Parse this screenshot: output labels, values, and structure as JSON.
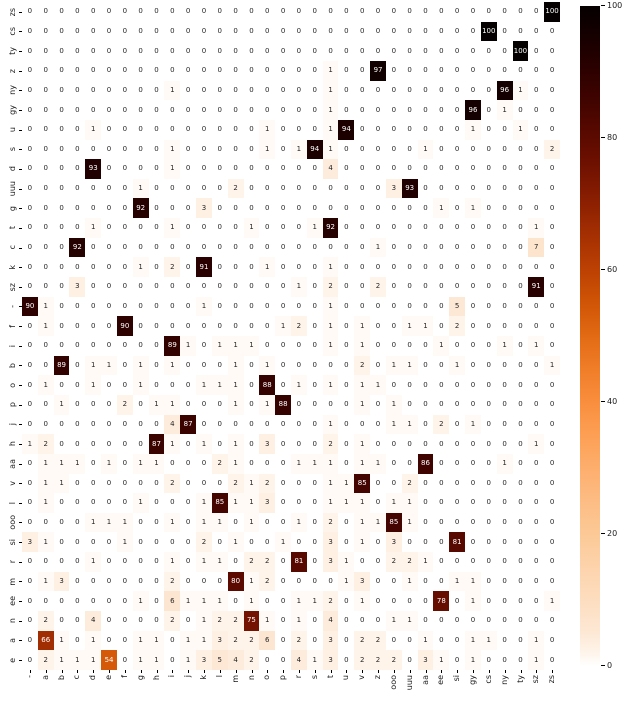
{
  "chart_data": {
    "type": "heatmap",
    "title": "",
    "xlabel": "",
    "ylabel": "",
    "col_labels": [
      "-",
      "a",
      "b",
      "c",
      "d",
      "e",
      "f",
      "g",
      "h",
      "i",
      "j",
      "k",
      "l",
      "m",
      "n",
      "o",
      "p",
      "r",
      "s",
      "t",
      "u",
      "v",
      "z",
      "ooo",
      "uuu",
      "aa",
      "ee",
      "si",
      "gy",
      "cs",
      "ny",
      "ty",
      "sz",
      "zs"
    ],
    "row_labels": [
      "zs",
      "cs",
      "ty",
      "z",
      "ny",
      "gy",
      "u",
      "s",
      "d",
      "uuu",
      "g",
      "t",
      "c",
      "k",
      "sz",
      "-",
      "f",
      "i",
      "b",
      "o",
      "p",
      "j",
      "h",
      "aa",
      "v",
      "l",
      "ooo",
      "si",
      "r",
      "m",
      "ee",
      "n",
      "a",
      "e"
    ],
    "matrix": [
      [
        0,
        0,
        0,
        0,
        0,
        0,
        0,
        0,
        0,
        0,
        0,
        0,
        0,
        0,
        0,
        0,
        0,
        0,
        0,
        0,
        0,
        0,
        0,
        0,
        0,
        0,
        0,
        0,
        0,
        0,
        0,
        0,
        0,
        100
      ],
      [
        0,
        0,
        0,
        0,
        0,
        0,
        0,
        0,
        0,
        0,
        0,
        0,
        0,
        0,
        0,
        0,
        0,
        0,
        0,
        0,
        0,
        0,
        0,
        0,
        0,
        0,
        0,
        0,
        0,
        100,
        0,
        0,
        0,
        0
      ],
      [
        0,
        0,
        0,
        0,
        0,
        0,
        0,
        0,
        0,
        0,
        0,
        0,
        0,
        0,
        0,
        0,
        0,
        0,
        0,
        0,
        0,
        0,
        0,
        0,
        0,
        0,
        0,
        0,
        0,
        0,
        0,
        100,
        0,
        0
      ],
      [
        0,
        0,
        0,
        0,
        0,
        0,
        0,
        0,
        0,
        0,
        0,
        0,
        0,
        0,
        0,
        0,
        0,
        0,
        0,
        1,
        0,
        0,
        97,
        0,
        0,
        0,
        0,
        0,
        0,
        0,
        0,
        0,
        0,
        0
      ],
      [
        0,
        0,
        0,
        0,
        0,
        0,
        0,
        0,
        0,
        1,
        0,
        0,
        0,
        0,
        0,
        0,
        0,
        0,
        0,
        1,
        0,
        0,
        0,
        0,
        0,
        0,
        0,
        0,
        0,
        0,
        96,
        1,
        0,
        0
      ],
      [
        0,
        0,
        0,
        0,
        0,
        0,
        0,
        0,
        0,
        0,
        0,
        0,
        0,
        0,
        0,
        0,
        0,
        0,
        0,
        1,
        0,
        0,
        0,
        0,
        0,
        0,
        0,
        0,
        96,
        0,
        1,
        0,
        0,
        0
      ],
      [
        0,
        0,
        0,
        0,
        1,
        0,
        0,
        0,
        0,
        0,
        0,
        0,
        0,
        0,
        0,
        1,
        0,
        0,
        0,
        1,
        94,
        0,
        0,
        0,
        0,
        0,
        0,
        0,
        1,
        0,
        0,
        1,
        0,
        0
      ],
      [
        0,
        0,
        0,
        0,
        0,
        0,
        0,
        0,
        0,
        1,
        0,
        0,
        0,
        0,
        0,
        1,
        0,
        1,
        94,
        1,
        0,
        0,
        0,
        0,
        0,
        1,
        0,
        0,
        0,
        0,
        0,
        0,
        0,
        2
      ],
      [
        0,
        0,
        0,
        0,
        93,
        0,
        0,
        0,
        0,
        1,
        0,
        0,
        0,
        0,
        0,
        0,
        0,
        0,
        0,
        4,
        0,
        0,
        0,
        0,
        0,
        0,
        0,
        0,
        0,
        0,
        0,
        0,
        0,
        0
      ],
      [
        0,
        0,
        0,
        0,
        0,
        0,
        0,
        1,
        0,
        0,
        0,
        0,
        0,
        2,
        0,
        0,
        0,
        0,
        0,
        0,
        0,
        0,
        0,
        3,
        93,
        0,
        0,
        0,
        0,
        0,
        0,
        0,
        0,
        0
      ],
      [
        0,
        0,
        0,
        0,
        0,
        0,
        0,
        92,
        0,
        0,
        0,
        3,
        0,
        0,
        0,
        0,
        0,
        0,
        0,
        0,
        0,
        0,
        0,
        0,
        0,
        0,
        1,
        0,
        1,
        0,
        0,
        0,
        0,
        0
      ],
      [
        0,
        0,
        0,
        0,
        1,
        0,
        0,
        0,
        0,
        1,
        0,
        0,
        0,
        0,
        1,
        0,
        0,
        0,
        1,
        92,
        0,
        0,
        0,
        0,
        0,
        0,
        0,
        0,
        0,
        0,
        0,
        0,
        1,
        0
      ],
      [
        0,
        0,
        0,
        92,
        0,
        0,
        0,
        0,
        0,
        0,
        0,
        0,
        0,
        0,
        0,
        0,
        0,
        0,
        0,
        0,
        0,
        0,
        1,
        0,
        0,
        0,
        0,
        0,
        0,
        0,
        0,
        0,
        7,
        0
      ],
      [
        0,
        0,
        0,
        0,
        0,
        0,
        0,
        1,
        0,
        2,
        0,
        91,
        0,
        0,
        0,
        1,
        0,
        0,
        0,
        1,
        0,
        0,
        0,
        0,
        0,
        0,
        0,
        0,
        0,
        0,
        0,
        0,
        0,
        0
      ],
      [
        0,
        0,
        0,
        3,
        0,
        0,
        0,
        0,
        0,
        0,
        0,
        0,
        0,
        0,
        0,
        0,
        0,
        1,
        0,
        2,
        0,
        0,
        2,
        0,
        0,
        0,
        0,
        0,
        0,
        0,
        0,
        0,
        91,
        0
      ],
      [
        90,
        1,
        0,
        0,
        0,
        0,
        0,
        0,
        0,
        0,
        0,
        1,
        0,
        0,
        0,
        0,
        0,
        0,
        0,
        1,
        0,
        0,
        0,
        0,
        0,
        0,
        0,
        5,
        0,
        0,
        0,
        0,
        0,
        0
      ],
      [
        0,
        1,
        0,
        0,
        0,
        0,
        90,
        0,
        0,
        0,
        0,
        0,
        0,
        0,
        0,
        0,
        1,
        2,
        0,
        1,
        0,
        1,
        0,
        0,
        1,
        1,
        0,
        2,
        0,
        0,
        0,
        0,
        0,
        0
      ],
      [
        0,
        0,
        0,
        0,
        0,
        0,
        0,
        0,
        0,
        89,
        1,
        0,
        1,
        1,
        1,
        0,
        0,
        0,
        0,
        1,
        0,
        1,
        0,
        0,
        0,
        0,
        1,
        0,
        0,
        0,
        1,
        0,
        1,
        0
      ],
      [
        0,
        0,
        89,
        0,
        1,
        1,
        0,
        1,
        0,
        1,
        0,
        0,
        0,
        1,
        0,
        1,
        0,
        0,
        0,
        0,
        0,
        2,
        0,
        1,
        1,
        0,
        0,
        1,
        0,
        0,
        0,
        0,
        0,
        1
      ],
      [
        0,
        1,
        0,
        0,
        1,
        0,
        0,
        1,
        0,
        0,
        0,
        1,
        1,
        1,
        0,
        88,
        0,
        1,
        0,
        1,
        0,
        1,
        1,
        0,
        0,
        0,
        0,
        0,
        0,
        0,
        0,
        0,
        0,
        0
      ],
      [
        0,
        0,
        1,
        0,
        0,
        0,
        2,
        0,
        1,
        1,
        0,
        0,
        0,
        1,
        0,
        1,
        88,
        0,
        0,
        0,
        0,
        1,
        0,
        1,
        0,
        0,
        0,
        0,
        0,
        0,
        0,
        0,
        0,
        0
      ],
      [
        0,
        0,
        0,
        0,
        0,
        0,
        0,
        0,
        0,
        4,
        87,
        0,
        0,
        0,
        0,
        0,
        0,
        0,
        0,
        1,
        0,
        0,
        0,
        1,
        1,
        0,
        2,
        0,
        1,
        0,
        0,
        0,
        0,
        0
      ],
      [
        1,
        2,
        0,
        0,
        0,
        0,
        0,
        0,
        87,
        1,
        0,
        1,
        0,
        1,
        0,
        3,
        0,
        0,
        0,
        2,
        0,
        1,
        0,
        0,
        0,
        0,
        0,
        0,
        0,
        0,
        0,
        0,
        1,
        0
      ],
      [
        0,
        1,
        1,
        1,
        0,
        1,
        0,
        1,
        1,
        0,
        0,
        0,
        2,
        1,
        0,
        0,
        0,
        1,
        1,
        1,
        0,
        1,
        1,
        0,
        0,
        86,
        0,
        0,
        0,
        0,
        1,
        0,
        0,
        0
      ],
      [
        0,
        1,
        1,
        0,
        0,
        0,
        0,
        0,
        0,
        2,
        0,
        0,
        0,
        2,
        1,
        2,
        0,
        0,
        0,
        1,
        1,
        85,
        0,
        0,
        2,
        0,
        0,
        0,
        0,
        0,
        0,
        0,
        0,
        0
      ],
      [
        0,
        1,
        0,
        0,
        0,
        0,
        0,
        1,
        0,
        0,
        0,
        1,
        85,
        1,
        1,
        3,
        0,
        0,
        0,
        1,
        1,
        1,
        0,
        1,
        1,
        0,
        0,
        0,
        0,
        0,
        0,
        0,
        0,
        0
      ],
      [
        0,
        0,
        0,
        0,
        1,
        1,
        1,
        0,
        0,
        1,
        0,
        1,
        1,
        0,
        1,
        0,
        0,
        1,
        0,
        2,
        0,
        1,
        1,
        85,
        1,
        0,
        0,
        0,
        0,
        0,
        0,
        0,
        0,
        0
      ],
      [
        3,
        1,
        0,
        0,
        0,
        0,
        1,
        0,
        0,
        0,
        0,
        2,
        0,
        1,
        0,
        0,
        1,
        0,
        0,
        3,
        0,
        1,
        0,
        3,
        0,
        0,
        0,
        81,
        0,
        0,
        0,
        0,
        0,
        0
      ],
      [
        0,
        0,
        0,
        0,
        1,
        0,
        0,
        0,
        0,
        1,
        0,
        1,
        1,
        0,
        2,
        2,
        0,
        81,
        0,
        3,
        1,
        0,
        0,
        2,
        2,
        1,
        0,
        0,
        0,
        0,
        0,
        0,
        0,
        0
      ],
      [
        0,
        1,
        3,
        0,
        0,
        0,
        0,
        0,
        0,
        2,
        0,
        0,
        0,
        80,
        1,
        2,
        0,
        0,
        0,
        0,
        1,
        3,
        0,
        0,
        1,
        0,
        0,
        1,
        1,
        0,
        0,
        0,
        0,
        0
      ],
      [
        0,
        0,
        0,
        0,
        0,
        0,
        0,
        1,
        0,
        6,
        1,
        1,
        1,
        0,
        1,
        0,
        0,
        1,
        1,
        2,
        0,
        1,
        0,
        0,
        0,
        0,
        78,
        0,
        1,
        0,
        0,
        0,
        0,
        1
      ],
      [
        0,
        2,
        0,
        0,
        4,
        0,
        0,
        0,
        0,
        2,
        0,
        1,
        2,
        2,
        75,
        1,
        0,
        1,
        0,
        4,
        0,
        0,
        0,
        1,
        1,
        0,
        0,
        0,
        0,
        0,
        0,
        0,
        0,
        0
      ],
      [
        0,
        66,
        1,
        0,
        1,
        0,
        0,
        1,
        1,
        0,
        1,
        1,
        3,
        2,
        2,
        6,
        0,
        2,
        0,
        3,
        0,
        2,
        2,
        0,
        0,
        1,
        0,
        0,
        1,
        1,
        0,
        0,
        1,
        0
      ],
      [
        0,
        2,
        1,
        1,
        1,
        54,
        0,
        1,
        1,
        0,
        1,
        3,
        5,
        4,
        2,
        0,
        0,
        4,
        1,
        3,
        0,
        2,
        2,
        2,
        0,
        3,
        1,
        0,
        1,
        0,
        0,
        0,
        1,
        0
      ]
    ],
    "value_range": [
      0,
      100
    ],
    "grid": false,
    "legend_position": "right-colorbar",
    "colorbar_ticks": [
      "100",
      "80",
      "60",
      "40",
      "20",
      "0"
    ],
    "colorbar_tick_values": [
      100,
      80,
      60,
      40,
      20,
      0
    ],
    "colormap": [
      [
        0,
        "#ffffff"
      ],
      [
        2,
        "#fef4ea"
      ],
      [
        5,
        "#fde8d5"
      ],
      [
        10,
        "#fdddbf"
      ],
      [
        15,
        "#fdd3ac"
      ],
      [
        20,
        "#fcc996"
      ],
      [
        25,
        "#fdbc84"
      ],
      [
        30,
        "#fdae6d"
      ],
      [
        35,
        "#fd9f54"
      ],
      [
        40,
        "#f98e3e"
      ],
      [
        45,
        "#f07d28"
      ],
      [
        50,
        "#e26a14"
      ],
      [
        55,
        "#d05506"
      ],
      [
        60,
        "#bc4103"
      ],
      [
        65,
        "#a63002"
      ],
      [
        70,
        "#8d2001"
      ],
      [
        75,
        "#741301"
      ],
      [
        80,
        "#5c0a00"
      ],
      [
        85,
        "#440400"
      ],
      [
        90,
        "#2d0100"
      ],
      [
        95,
        "#180000"
      ],
      [
        100,
        "#050000"
      ]
    ],
    "annot_text_color_light_cells": "#262626",
    "annot_text_color_dark_cells": "#ffffff",
    "annot_dark_threshold": 50,
    "axis_tick_color": "#1a1a1a"
  }
}
